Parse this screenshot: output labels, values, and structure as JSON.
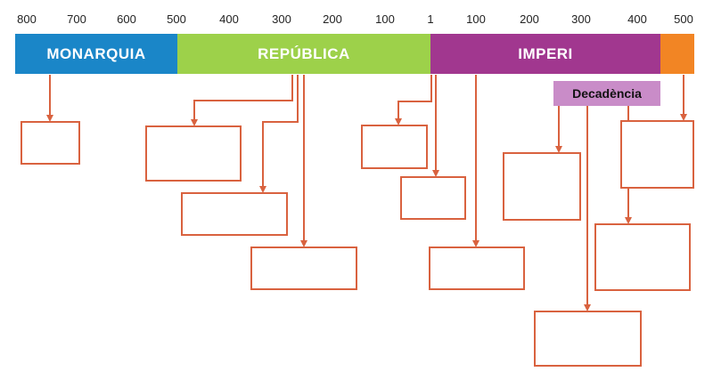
{
  "ticks": {
    "bc": [
      "800",
      "700",
      "600",
      "500",
      "400",
      "300",
      "200",
      "100"
    ],
    "origin": "1",
    "ad": [
      "100",
      "200",
      "300",
      "400",
      "500"
    ]
  },
  "periods": {
    "monarquia": "MONARQUIA",
    "republica": "REPÚBLICA",
    "imperi": "IMPERI"
  },
  "decadencia": "Decadència",
  "colors": {
    "monarquia": "#1a86c8",
    "republica": "#9dd14a",
    "imperi": "#a1378f",
    "late": "#f28524",
    "decadencia": "#c98cc8",
    "connector": "#d9623f"
  }
}
